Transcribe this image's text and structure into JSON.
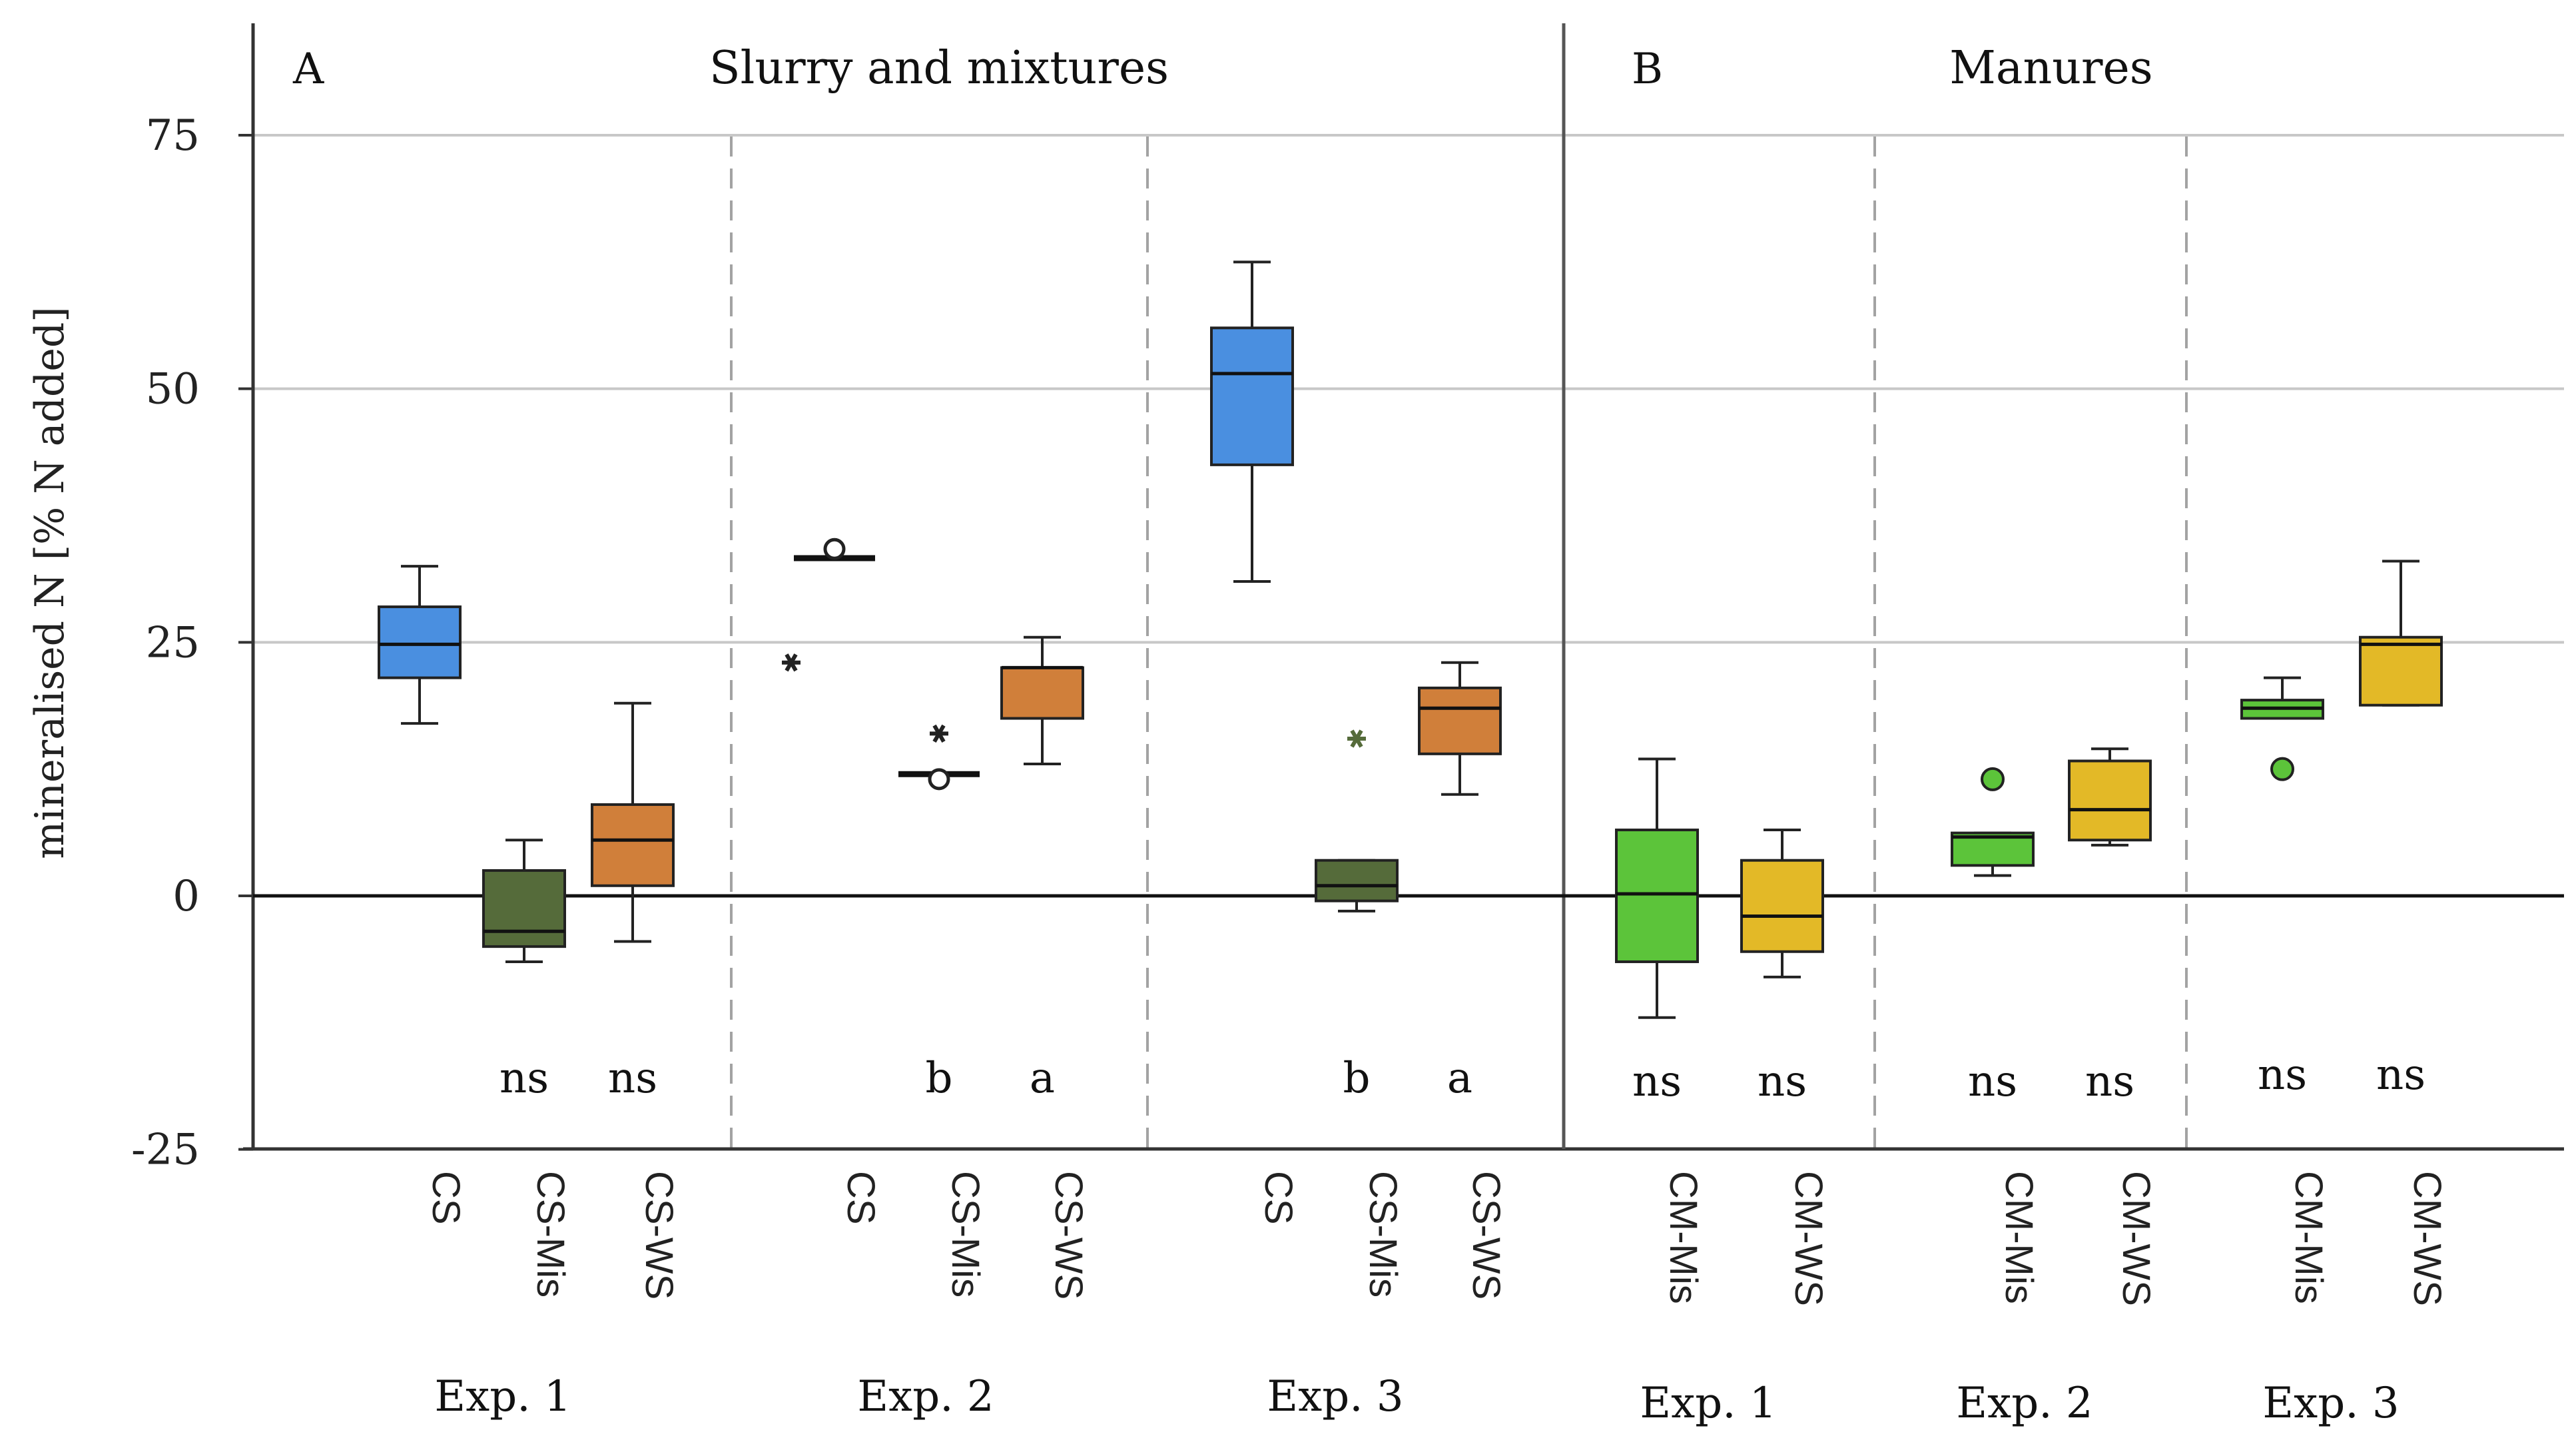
{
  "chart_data": {
    "type": "boxplot",
    "ylabel": "mineralised N [% N added]",
    "ylim": [
      -25,
      85
    ],
    "yticks": [
      75,
      50,
      25,
      0,
      -25
    ],
    "panels": [
      {
        "letter": "A",
        "title": "Slurry and mixtures",
        "groups": [
          {
            "label": "Exp. 1",
            "boxes": [
              {
                "category": "CS",
                "color": "#4A8FE0",
                "min": 17,
                "q1": 21.5,
                "median": 24.8,
                "q3": 28.5,
                "max": 32.5,
                "letter": ""
              },
              {
                "category": "CS-Mis",
                "color": "#556B3A",
                "min": -6.5,
                "q1": -5,
                "median": -3.5,
                "q3": 2.5,
                "max": 5.5,
                "letter": "ns"
              },
              {
                "category": "CS-WS",
                "color": "#D07F3A",
                "min": -4.5,
                "q1": 1,
                "median": 5.5,
                "q3": 9,
                "max": 19,
                "letter": "ns"
              }
            ]
          },
          {
            "label": "Exp. 2",
            "boxes": [
              {
                "category": "CS",
                "color": "#4A8FE0",
                "min": 33.3,
                "q1": 33.3,
                "median": 33.3,
                "q3": 33.3,
                "max": 33.3,
                "letter": "",
                "outliers": [
                  {
                    "value": 34.2,
                    "shape": "circle"
                  },
                  {
                    "value": 23,
                    "shape": "star"
                  }
                ]
              },
              {
                "category": "CS-Mis",
                "color": "#556B3A",
                "min": 12,
                "q1": 12,
                "median": 12,
                "q3": 12,
                "max": 12,
                "letter": "b",
                "outliers": [
                  {
                    "value": 11.5,
                    "shape": "circle"
                  },
                  {
                    "value": 16,
                    "shape": "star"
                  }
                ]
              },
              {
                "category": "CS-WS",
                "color": "#D07F3A",
                "min": 13,
                "q1": 17.5,
                "median": 22.5,
                "q3": 22.5,
                "max": 25.5,
                "letter": "a"
              }
            ]
          },
          {
            "label": "Exp. 3",
            "boxes": [
              {
                "category": "CS",
                "color": "#4A8FE0",
                "min": 31,
                "q1": 42.5,
                "median": 51.5,
                "q3": 56,
                "max": 62.5,
                "letter": ""
              },
              {
                "category": "CS-Mis",
                "color": "#556B3A",
                "min": -1.5,
                "q1": -0.5,
                "median": 1,
                "q3": 3.5,
                "max": 3.5,
                "letter": "b",
                "outliers": [
                  {
                    "value": 15.5,
                    "shape": "star"
                  }
                ]
              },
              {
                "category": "CS-WS",
                "color": "#D07F3A",
                "min": 10,
                "q1": 14,
                "median": 18.5,
                "q3": 20.5,
                "max": 23,
                "letter": "a"
              }
            ]
          }
        ]
      },
      {
        "letter": "B",
        "title": "Manures",
        "groups": [
          {
            "label": "Exp. 1",
            "boxes": [
              {
                "category": "CM-Mis",
                "color": "#5CC43A",
                "min": -12,
                "q1": -6.5,
                "median": 0.2,
                "q3": 6.5,
                "max": 13.5,
                "letter": "ns"
              },
              {
                "category": "CM-WS",
                "color": "#E3B927",
                "min": -8,
                "q1": -5.5,
                "median": -2,
                "q3": 3.5,
                "max": 6.5,
                "letter": "ns"
              }
            ]
          },
          {
            "label": "Exp. 2",
            "boxes": [
              {
                "category": "CM-Mis",
                "color": "#5CC43A",
                "min": 2,
                "q1": 3,
                "median": 5.8,
                "q3": 6.2,
                "max": 6.2,
                "letter": "ns",
                "outliers": [
                  {
                    "value": 11.5,
                    "shape": "dot"
                  }
                ]
              },
              {
                "category": "CM-WS",
                "color": "#E3B927",
                "min": 5,
                "q1": 5.5,
                "median": 8.5,
                "q3": 13.3,
                "max": 14.5,
                "letter": "ns"
              }
            ]
          },
          {
            "label": "Exp. 3",
            "boxes": [
              {
                "category": "CM-Mis",
                "color": "#5CC43A",
                "min": 17.5,
                "q1": 17.5,
                "median": 18.5,
                "q3": 19.3,
                "max": 21.5,
                "letter": "ns",
                "outliers": [
                  {
                    "value": 12.5,
                    "shape": "dot"
                  }
                ]
              },
              {
                "category": "CM-WS",
                "color": "#E3B927",
                "min": 18.8,
                "q1": 18.8,
                "median": 24.8,
                "q3": 25.5,
                "max": 33,
                "letter": "ns"
              }
            ]
          }
        ]
      }
    ]
  }
}
